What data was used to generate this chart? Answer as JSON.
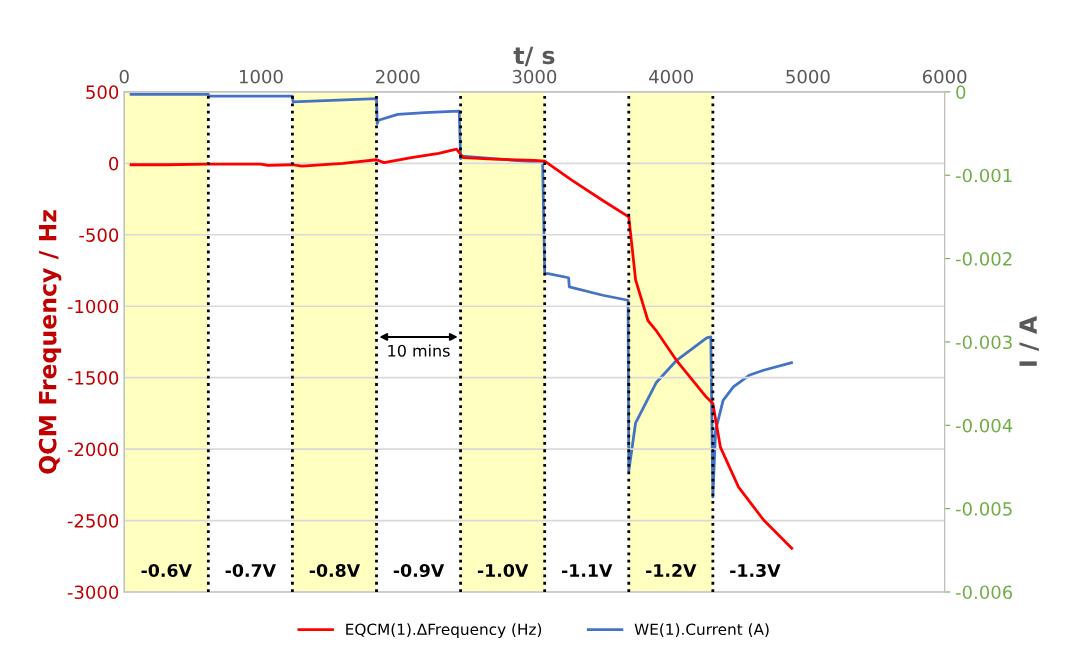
{
  "chart_data": {
    "type": "line",
    "xlabel": "t/ s",
    "ylabel": "QCM Frequency / Hz",
    "y2label": "I / A",
    "xlim": [
      0,
      6000
    ],
    "xticks": [
      0,
      1000,
      2000,
      3000,
      4000,
      5000,
      6000
    ],
    "ylim": [
      -3000,
      500
    ],
    "yticks": [
      -3000,
      -2500,
      -2000,
      -1500,
      -1000,
      -500,
      0,
      500
    ],
    "y2lim": [
      -0.006,
      0
    ],
    "y2ticks": [
      -0.006,
      -0.005,
      -0.004,
      -0.003,
      -0.002,
      -0.001,
      0
    ],
    "grid": "y",
    "legend": "bottom",
    "marker": "none",
    "line_style": "solid",
    "series": [
      {
        "name": "EQCM(1).ΔFrequency (Hz)",
        "color": "#ff0000",
        "x": [
          50,
          300,
          615,
          1000,
          1050,
          1230,
          1300,
          1600,
          1845,
          1900,
          2100,
          2300,
          2430,
          2480,
          2700,
          3000,
          3075,
          3270,
          3500,
          3690,
          3740,
          3830,
          3890,
          4037,
          4257,
          4305,
          4360,
          4493,
          4676,
          4882
        ],
        "values": [
          -10,
          -10,
          -5,
          -5,
          -15,
          -10,
          -20,
          0,
          25,
          5,
          40,
          70,
          100,
          40,
          30,
          20,
          15,
          -116,
          -260,
          -375,
          -815,
          -1100,
          -1170,
          -1377,
          -1636,
          -1680,
          -1986,
          -2266,
          -2496,
          -2694
        ]
      },
      {
        "name": "WE(1).Current (A)",
        "color": "#4472c4",
        "axis": "y2",
        "x": [
          50,
          615,
          620,
          1230,
          1235,
          1845,
          1850,
          1860,
          2000,
          2200,
          2440,
          2450,
          2460,
          2470,
          2700,
          3060,
          3075,
          3080,
          3100,
          3250,
          3255,
          3500,
          3685,
          3690,
          3740,
          3890,
          4040,
          4260,
          4290,
          4305,
          4325,
          4380,
          4455,
          4570,
          4675,
          4880
        ],
        "values": [
          -3e-05,
          -3e-05,
          -5e-05,
          -5e-05,
          -0.00012,
          -8e-05,
          -0.00038,
          -0.00034,
          -0.00027,
          -0.00025,
          -0.00023,
          -0.00023,
          -0.0008,
          -0.00077,
          -0.0008,
          -0.00085,
          -0.00216,
          -0.00218,
          -0.00218,
          -0.00223,
          -0.00234,
          -0.00244,
          -0.0025,
          -0.00455,
          -0.00397,
          -0.00349,
          -0.00322,
          -0.00295,
          -0.00294,
          -0.00486,
          -0.00406,
          -0.0037,
          -0.00354,
          -0.0034,
          -0.00334,
          -0.00325
        ]
      }
    ],
    "bands": [
      {
        "axis": "x",
        "from": 0,
        "to": 615,
        "label": "-0.6V",
        "color": "#ffffc0"
      },
      {
        "axis": "x",
        "from": 615,
        "to": 1230,
        "label": "-0.7V",
        "color": "#ffffff"
      },
      {
        "axis": "x",
        "from": 1230,
        "to": 1845,
        "label": "-0.8V",
        "color": "#ffffc0"
      },
      {
        "axis": "x",
        "from": 1845,
        "to": 2460,
        "label": "-0.9V",
        "color": "#ffffff"
      },
      {
        "axis": "x",
        "from": 2460,
        "to": 3075,
        "label": "-1.0V",
        "color": "#ffffc0"
      },
      {
        "axis": "x",
        "from": 3075,
        "to": 3690,
        "label": "-1.1V",
        "color": "#ffffff"
      },
      {
        "axis": "x",
        "from": 3690,
        "to": 4305,
        "label": "-1.2V",
        "color": "#ffffc0"
      },
      {
        "axis": "x",
        "from": 4305,
        "to": 4920,
        "label": "-1.3V",
        "color": "#ffffff"
      }
    ],
    "ref_lines": [
      {
        "axis": "x",
        "value": 615,
        "color": "#000000",
        "line_style": "dotted"
      },
      {
        "axis": "x",
        "value": 1230,
        "color": "#000000",
        "line_style": "dotted"
      },
      {
        "axis": "x",
        "value": 1845,
        "color": "#000000",
        "line_style": "dotted"
      },
      {
        "axis": "x",
        "value": 2460,
        "color": "#000000",
        "line_style": "dotted"
      },
      {
        "axis": "x",
        "value": 3075,
        "color": "#000000",
        "line_style": "dotted"
      },
      {
        "axis": "x",
        "value": 3690,
        "color": "#000000",
        "line_style": "dotted"
      },
      {
        "axis": "x",
        "value": 4305,
        "color": "#000000",
        "line_style": "dotted"
      }
    ],
    "annotations": [
      "10 mins"
    ]
  }
}
